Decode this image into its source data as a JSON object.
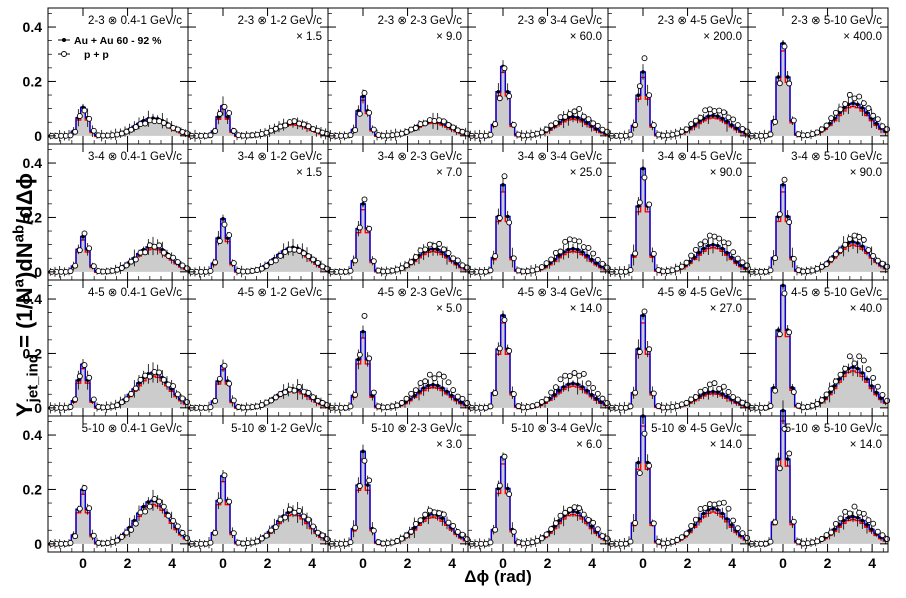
{
  "y_axis_label": "Y",
  "y_axis_label_sub": "jet_ind",
  "y_axis_label_eq": "=",
  "y_axis_label_expr_a": "(1/N",
  "y_axis_label_expr_a_sup": "a",
  "y_axis_label_expr_b": ")dN",
  "y_axis_label_expr_b_sup": "ab",
  "y_axis_label_expr_c": "/dΔϕ",
  "x_axis_label": "Δϕ (rad)",
  "colors": {
    "auau_band_fill": "#cccccc",
    "auau_line": "#0000dd",
    "auau_sys": "#ff0000",
    "auau_marker": "#000000",
    "pp_marker": "#000000"
  },
  "legend": {
    "auau": "Au + Au 60 - 92 %",
    "pp": "p + p"
  },
  "chart_data": {
    "type": "step-histogram-grid",
    "rows": 4,
    "cols": 6,
    "xlim": [
      -1.5708,
      4.7124
    ],
    "x_ticks": [
      0,
      2,
      4
    ],
    "ylim": [
      -0.03,
      0.47
    ],
    "y_ticks": [
      0,
      0.2,
      0.4
    ],
    "grid": false,
    "legend_location": "top-left panel",
    "trigger_bins": [
      "2-3",
      "3-4",
      "4-5",
      "5-10"
    ],
    "partner_bins": [
      "0.4-1 GeV/c",
      "1-2 GeV/c",
      "2-3 GeV/c",
      "3-4 GeV/c",
      "4-5 GeV/c",
      "5-10 GeV/c"
    ],
    "panels": [
      {
        "label": "2-3 ⊗ 0.4-1 GeV/c",
        "scale": "",
        "near": 0.105,
        "away": 0.065,
        "ped": 0.0,
        "pp_near": 0.1,
        "pp_away": 0.055
      },
      {
        "label": "2-3 ⊗ 1-2 GeV/c",
        "scale": "× 1.5",
        "near": 0.11,
        "away": 0.048,
        "ped": 0.0,
        "pp_near": 0.115,
        "pp_away": 0.048
      },
      {
        "label": "2-3 ⊗ 2-3 GeV/c",
        "scale": "× 9.0",
        "near": 0.145,
        "away": 0.055,
        "ped": 0.0,
        "pp_near": 0.14,
        "pp_away": 0.055
      },
      {
        "label": "2-3 ⊗ 3-4 GeV/c",
        "scale": "× 60.0",
        "near": 0.255,
        "away": 0.07,
        "ped": 0.0,
        "pp_near": 0.24,
        "pp_away": 0.09
      },
      {
        "label": "2-3 ⊗ 4-5 GeV/c",
        "scale": "× 200.0",
        "near": 0.235,
        "away": 0.075,
        "ped": 0.0,
        "pp_near": 0.26,
        "pp_away": 0.1
      },
      {
        "label": "2-3 ⊗ 5-10 GeV/c",
        "scale": "× 400.0",
        "near": 0.34,
        "away": 0.12,
        "ped": 0.0,
        "pp_near": 0.33,
        "pp_away": 0.15
      },
      {
        "label": "3-4 ⊗ 0.4-1 GeV/c",
        "scale": "",
        "near": 0.13,
        "away": 0.095,
        "ped": 0.0,
        "pp_near": 0.13,
        "pp_away": 0.09
      },
      {
        "label": "3-4 ⊗ 1-2 GeV/c",
        "scale": "× 1.5",
        "near": 0.195,
        "away": 0.09,
        "ped": 0.0,
        "pp_near": 0.19,
        "pp_away": 0.085
      },
      {
        "label": "3-4 ⊗ 2-3 GeV/c",
        "scale": "× 7.0",
        "near": 0.25,
        "away": 0.085,
        "ped": 0.0,
        "pp_near": 0.24,
        "pp_away": 0.1
      },
      {
        "label": "3-4 ⊗ 3-4 GeV/c",
        "scale": "× 25.0",
        "near": 0.32,
        "away": 0.085,
        "ped": 0.0,
        "pp_near": 0.31,
        "pp_away": 0.115
      },
      {
        "label": "3-4 ⊗ 4-5 GeV/c",
        "scale": "× 90.0",
        "near": 0.38,
        "away": 0.1,
        "ped": 0.0,
        "pp_near": 0.37,
        "pp_away": 0.14
      },
      {
        "label": "3-4 ⊗ 5-10 GeV/c",
        "scale": "× 90.0",
        "near": 0.32,
        "away": 0.11,
        "ped": 0.0,
        "pp_near": 0.3,
        "pp_away": 0.12
      },
      {
        "label": "4-5 ⊗ 0.4-1 GeV/c",
        "scale": "",
        "near": 0.16,
        "away": 0.13,
        "ped": 0.0,
        "pp_near": 0.17,
        "pp_away": 0.13
      },
      {
        "label": "4-5 ⊗ 1-2 GeV/c",
        "scale": "",
        "near": 0.155,
        "away": 0.07,
        "ped": 0.0,
        "pp_near": 0.15,
        "pp_away": 0.07
      },
      {
        "label": "4-5 ⊗ 2-3 GeV/c",
        "scale": "× 5.0",
        "near": 0.28,
        "away": 0.085,
        "ped": 0.0,
        "pp_near": 0.3,
        "pp_away": 0.12
      },
      {
        "label": "4-5 ⊗ 3-4 GeV/c",
        "scale": "× 14.0",
        "near": 0.34,
        "away": 0.09,
        "ped": 0.0,
        "pp_near": 0.31,
        "pp_away": 0.13
      },
      {
        "label": "4-5 ⊗ 4-5 GeV/c",
        "scale": "× 27.0",
        "near": 0.34,
        "away": 0.06,
        "ped": 0.0,
        "pp_near": 0.33,
        "pp_away": 0.08
      },
      {
        "label": "4-5 ⊗ 5-10 GeV/c",
        "scale": "× 40.0",
        "near": 0.45,
        "away": 0.15,
        "ped": 0.0,
        "pp_near": 0.38,
        "pp_away": 0.18
      },
      {
        "label": "5-10 ⊗ 0.4-1 GeV/c",
        "scale": "",
        "near": 0.2,
        "away": 0.16,
        "ped": 0.0,
        "pp_near": 0.19,
        "pp_away": 0.15
      },
      {
        "label": "5-10 ⊗ 1-2 GeV/c",
        "scale": "",
        "near": 0.25,
        "away": 0.12,
        "ped": 0.0,
        "pp_near": 0.22,
        "pp_away": 0.12
      },
      {
        "label": "5-10 ⊗ 2-3 GeV/c",
        "scale": "× 3.0",
        "near": 0.34,
        "away": 0.11,
        "ped": 0.0,
        "pp_near": 0.32,
        "pp_away": 0.12
      },
      {
        "label": "5-10 ⊗ 3-4 GeV/c",
        "scale": "× 6.0",
        "near": 0.32,
        "away": 0.12,
        "ped": 0.0,
        "pp_near": 0.3,
        "pp_away": 0.13
      },
      {
        "label": "5-10 ⊗ 4-5 GeV/c",
        "scale": "× 14.0",
        "near": 0.47,
        "away": 0.13,
        "ped": 0.0,
        "pp_near": 0.43,
        "pp_away": 0.16
      },
      {
        "label": "5-10 ⊗ 5-10 GeV/c",
        "scale": "× 14.0",
        "near": 0.49,
        "away": 0.1,
        "ped": 0.0,
        "pp_near": 0.46,
        "pp_away": 0.12
      }
    ]
  }
}
